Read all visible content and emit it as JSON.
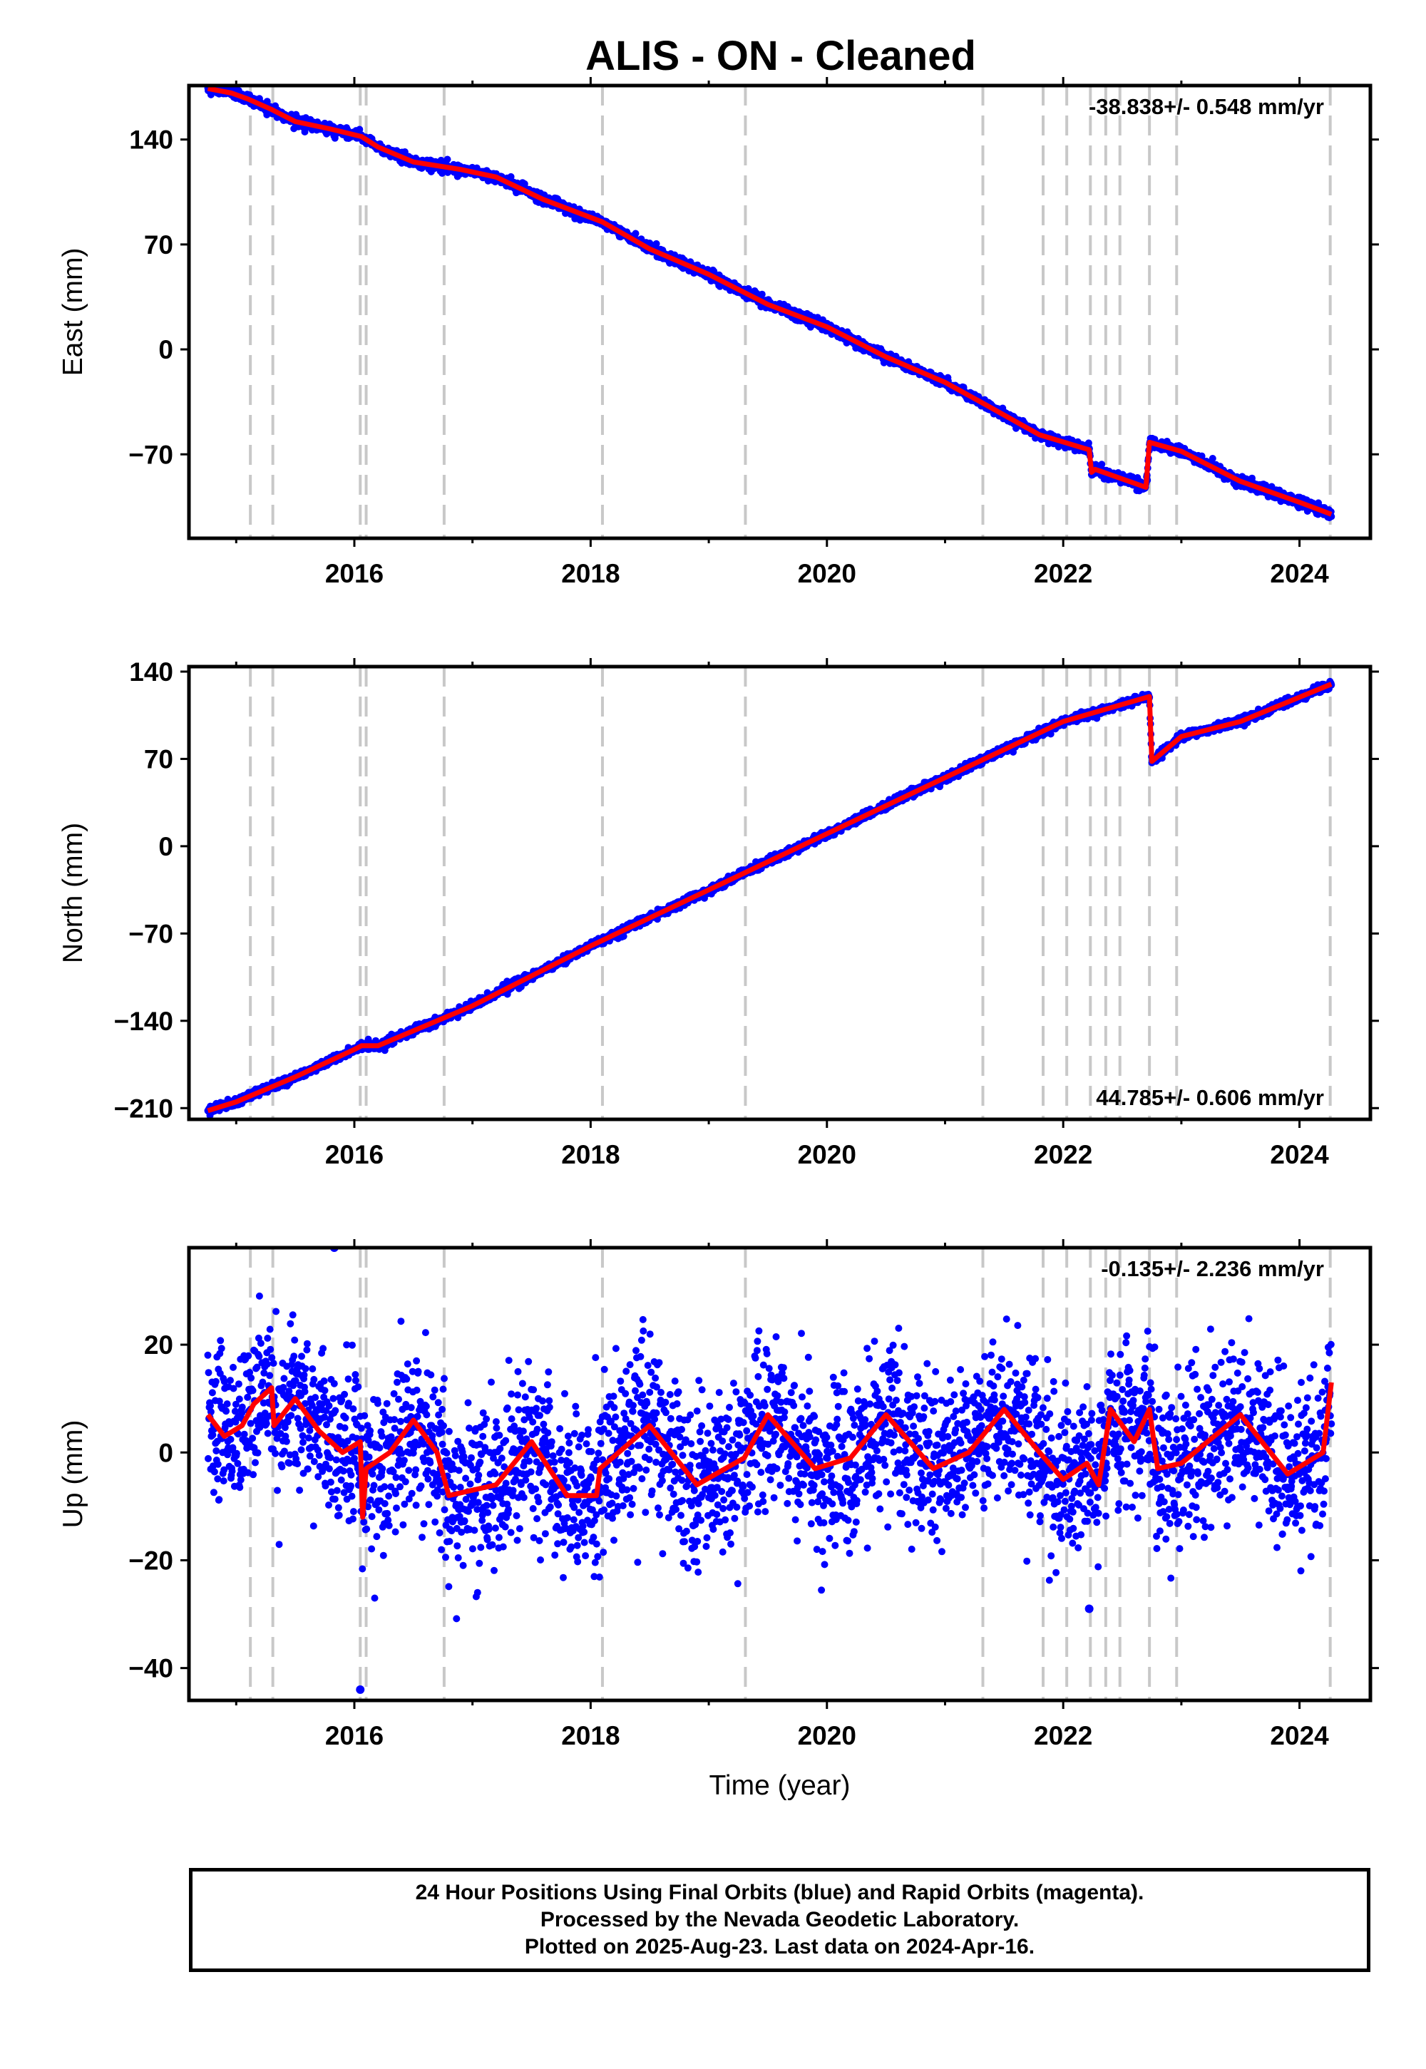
{
  "title": "ALIS  - ON - Cleaned",
  "colors": {
    "data": "#0000ff",
    "model": "#ff0000",
    "events": "#c8c8c8",
    "frame": "#000000"
  },
  "chart_data": [
    {
      "type": "scatter",
      "ylabel": "East (mm)",
      "rate_label": "-38.838+/- 0.548 mm/yr",
      "rate_position": "top-right",
      "xlim": [
        2014.6,
        2024.6
      ],
      "ylim": [
        -126,
        176
      ],
      "xticks": [
        2016,
        2018,
        2020,
        2022,
        2024
      ],
      "xticklabels": [
        "2016",
        "2018",
        "2020",
        "2022",
        "2024"
      ],
      "yticks": [
        -70,
        0,
        70,
        140
      ],
      "yticklabels": [
        "−70",
        "0",
        "70",
        "140"
      ],
      "model": [
        [
          2014.76,
          174
        ],
        [
          2014.96,
          171
        ],
        [
          2015.1,
          167
        ],
        [
          2015.3,
          160
        ],
        [
          2015.5,
          152
        ],
        [
          2015.8,
          147
        ],
        [
          2016.06,
          142
        ],
        [
          2016.2,
          135
        ],
        [
          2016.5,
          125
        ],
        [
          2016.9,
          120
        ],
        [
          2017.2,
          115
        ],
        [
          2017.6,
          100
        ],
        [
          2018.1,
          85
        ],
        [
          2018.5,
          67
        ],
        [
          2019.0,
          50
        ],
        [
          2019.5,
          30
        ],
        [
          2020.0,
          15
        ],
        [
          2020.5,
          -5
        ],
        [
          2021.0,
          -22
        ],
        [
          2021.3,
          -35
        ],
        [
          2021.8,
          -57
        ],
        [
          2022.22,
          -67
        ],
        [
          2022.24,
          -82
        ],
        [
          2022.27,
          -80
        ],
        [
          2022.7,
          -92
        ],
        [
          2022.73,
          -62
        ],
        [
          2023.0,
          -68
        ],
        [
          2023.5,
          -88
        ],
        [
          2024.0,
          -102
        ],
        [
          2024.27,
          -110
        ]
      ],
      "trend": {
        "rate_mm_per_yr": -38.838,
        "anchor_year": 2014.76,
        "anchor_value": 174
      },
      "offsets": [
        {
          "year": 2022.24,
          "offset": -15
        },
        {
          "year": 2022.73,
          "offset": 32
        }
      ],
      "scatter_sigma_mm": 1.6
    },
    {
      "type": "scatter",
      "ylabel": "North (mm)",
      "rate_label": "44.785+/- 0.606 mm/yr",
      "rate_position": "bottom-right",
      "xlim": [
        2014.6,
        2024.6
      ],
      "ylim": [
        -219,
        144
      ],
      "xticks": [
        2016,
        2018,
        2020,
        2022,
        2024
      ],
      "xticklabels": [
        "2016",
        "2018",
        "2020",
        "2022",
        "2024"
      ],
      "yticks": [
        -210,
        -140,
        -70,
        0,
        70,
        140
      ],
      "yticklabels": [
        "−210",
        "−140",
        "−70",
        "0",
        "70",
        "140"
      ],
      "model": [
        [
          2014.76,
          -212
        ],
        [
          2015.0,
          -205
        ],
        [
          2015.5,
          -185
        ],
        [
          2016.0,
          -163
        ],
        [
          2016.06,
          -160
        ],
        [
          2016.2,
          -160
        ],
        [
          2017.0,
          -128
        ],
        [
          2018.0,
          -80
        ],
        [
          2019.0,
          -35
        ],
        [
          2020.0,
          10
        ],
        [
          2021.0,
          55
        ],
        [
          2022.0,
          100
        ],
        [
          2022.73,
          120
        ],
        [
          2022.75,
          68
        ],
        [
          2023.0,
          88
        ],
        [
          2023.5,
          100
        ],
        [
          2024.27,
          130
        ]
      ],
      "trend": {
        "rate_mm_per_yr": 44.785,
        "anchor_year": 2014.76,
        "anchor_value": -212
      },
      "offsets": [
        {
          "year": 2022.74,
          "offset": -52
        }
      ],
      "scatter_sigma_mm": 1.6
    },
    {
      "type": "scatter",
      "ylabel": "Up (mm)",
      "xlabel": "Time (year)",
      "rate_label": "-0.135+/- 2.236 mm/yr",
      "rate_position": "top-right",
      "xlim": [
        2014.6,
        2024.6
      ],
      "ylim": [
        -46,
        38
      ],
      "xticks": [
        2016,
        2018,
        2020,
        2022,
        2024
      ],
      "xticklabels": [
        "2016",
        "2018",
        "2020",
        "2022",
        "2024"
      ],
      "yticks": [
        -40,
        -20,
        0,
        20
      ],
      "yticklabels": [
        "−40",
        "−20",
        "0",
        "20"
      ],
      "model": [
        [
          2014.76,
          7
        ],
        [
          2014.9,
          3
        ],
        [
          2015.05,
          5
        ],
        [
          2015.15,
          9
        ],
        [
          2015.3,
          12
        ],
        [
          2015.32,
          5
        ],
        [
          2015.5,
          10
        ],
        [
          2015.7,
          4
        ],
        [
          2015.9,
          0
        ],
        [
          2016.05,
          2
        ],
        [
          2016.07,
          -12
        ],
        [
          2016.1,
          -3
        ],
        [
          2016.3,
          0
        ],
        [
          2016.5,
          6
        ],
        [
          2016.7,
          0
        ],
        [
          2016.8,
          -8
        ],
        [
          2017.2,
          -6
        ],
        [
          2017.5,
          2
        ],
        [
          2017.8,
          -8
        ],
        [
          2018.05,
          -8
        ],
        [
          2018.08,
          -3
        ],
        [
          2018.5,
          5
        ],
        [
          2018.9,
          -6
        ],
        [
          2019.3,
          -1
        ],
        [
          2019.5,
          7
        ],
        [
          2019.9,
          -3
        ],
        [
          2020.2,
          -1
        ],
        [
          2020.5,
          7
        ],
        [
          2020.9,
          -3
        ],
        [
          2021.2,
          0
        ],
        [
          2021.5,
          8
        ],
        [
          2021.8,
          0
        ],
        [
          2022.0,
          -5
        ],
        [
          2022.2,
          -2
        ],
        [
          2022.3,
          -6
        ],
        [
          2022.4,
          8
        ],
        [
          2022.6,
          2
        ],
        [
          2022.73,
          8
        ],
        [
          2022.8,
          -3
        ],
        [
          2023.0,
          -2
        ],
        [
          2023.5,
          7
        ],
        [
          2023.9,
          -4
        ],
        [
          2024.2,
          0
        ],
        [
          2024.27,
          13
        ]
      ],
      "scatter_sigma_mm": 7.5,
      "outliers": [
        [
          2015.83,
          38
        ],
        [
          2016.05,
          -44
        ],
        [
          2022.22,
          -29
        ]
      ]
    }
  ],
  "event_lines": [
    2015.12,
    2015.31,
    2016.05,
    2016.1,
    2016.76,
    2018.1,
    2019.31,
    2021.32,
    2021.83,
    2022.03,
    2022.23,
    2022.36,
    2022.48,
    2022.73,
    2022.96,
    2024.26
  ],
  "footer": {
    "line1": "24 Hour Positions Using Final Orbits (blue) and Rapid Orbits (magenta).",
    "line2": "Processed by the Nevada Geodetic Laboratory.",
    "line3": "Plotted on 2025-Aug-23. Last data on 2024-Apr-16."
  }
}
